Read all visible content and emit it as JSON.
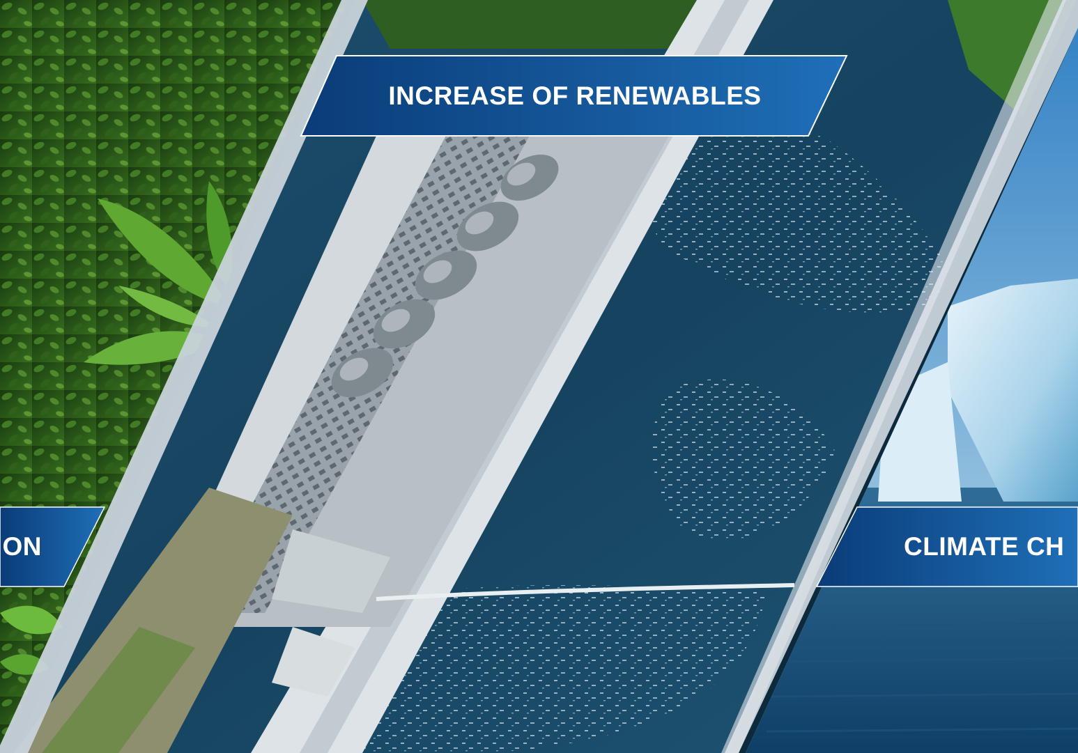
{
  "banners": {
    "left": "ON",
    "center": "INCREASE OF RENEWABLES",
    "right": "CLIMATE CH"
  },
  "colors": {
    "banner_dark": "#0a3c78",
    "banner_light": "#1f6fb8",
    "divider": "#c9d3da"
  }
}
